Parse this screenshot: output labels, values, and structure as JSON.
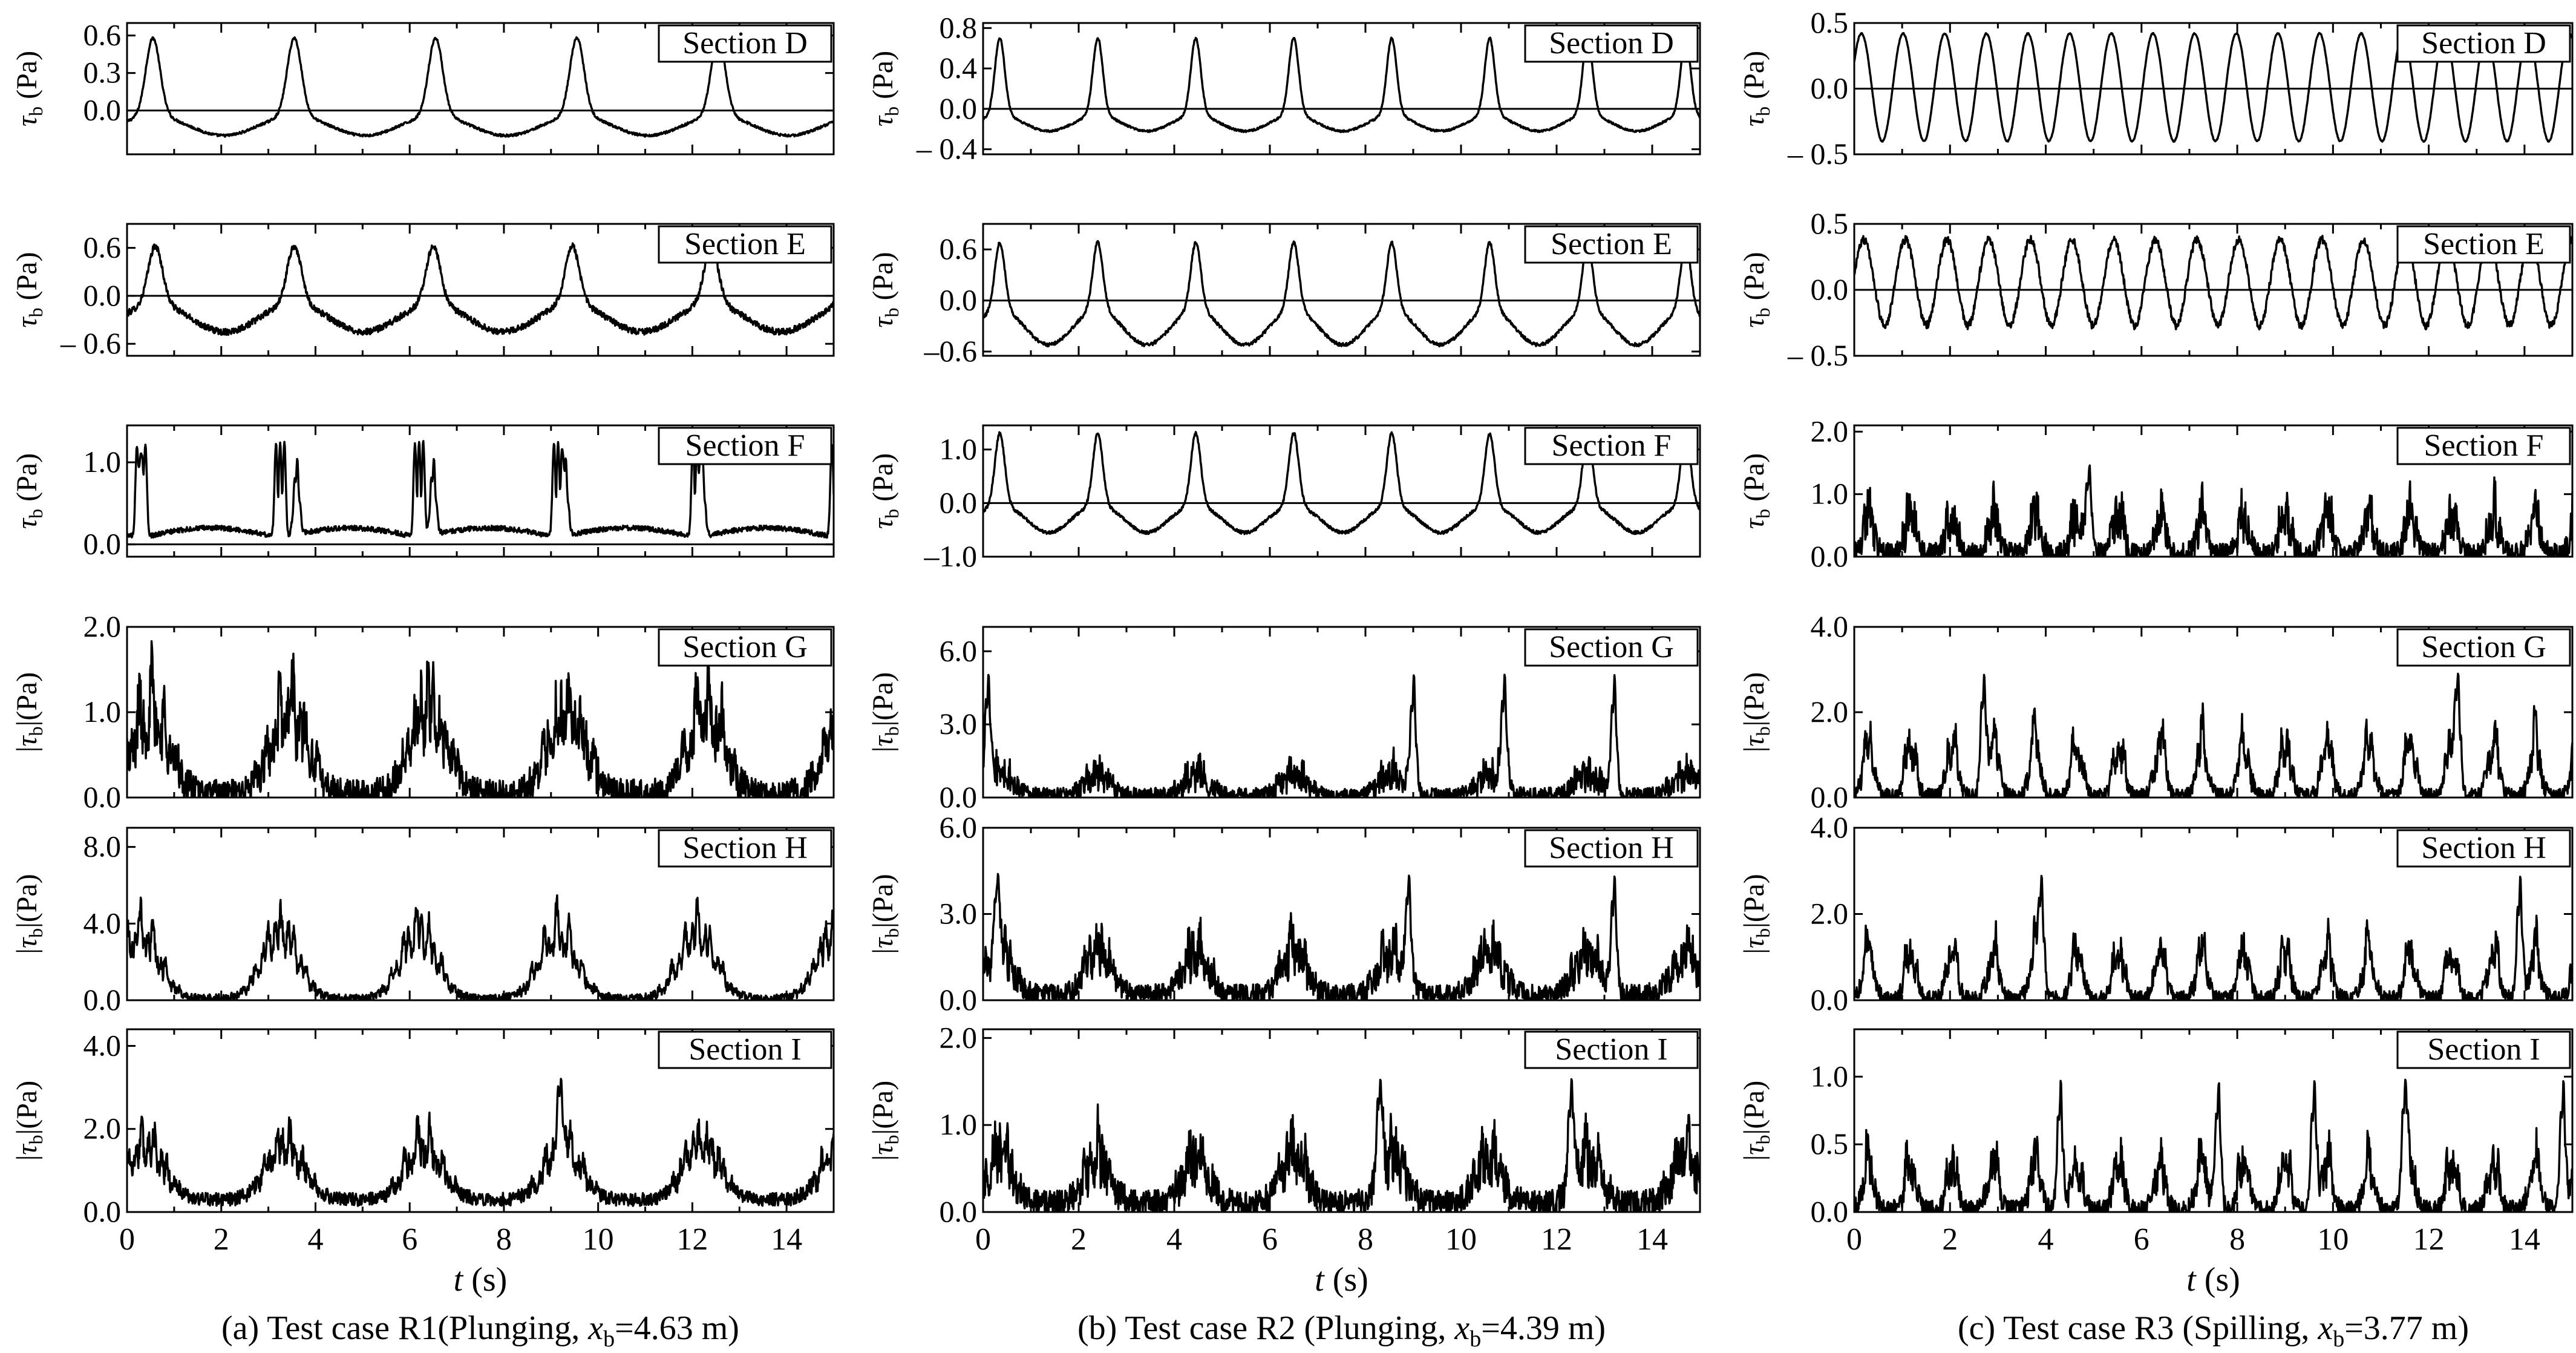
{
  "figure": {
    "columns": [
      {
        "caption": "(a) Test case R1(Plunging, ",
        "caption_var": "x",
        "caption_sub": "b",
        "caption_tail": "=4.63 m)"
      },
      {
        "caption": "(b) Test case R2 (Plunging, ",
        "caption_var": "x",
        "caption_sub": "b",
        "caption_tail": "=4.39 m)"
      },
      {
        "caption": "(c) Test case R3 (Spilling, ",
        "caption_var": "x",
        "caption_sub": "b",
        "caption_tail": "=3.77 m)"
      }
    ],
    "x_axis": {
      "label_var": "t",
      "label_unit": "(s)",
      "ticks": [
        "0",
        "2",
        "4",
        "6",
        "8",
        "10",
        "12",
        "14"
      ]
    },
    "colors": {
      "line": "#000000",
      "frame": "#000000",
      "background": "#ffffff"
    }
  },
  "chart_data": [
    {
      "type": "line",
      "col": 0,
      "row": 0,
      "label": "Section D",
      "ylabel": "τb (Pa)",
      "abs": false,
      "ylim": [
        -0.35,
        0.7
      ],
      "yticks": [
        "0.6",
        "0.3",
        "0.0"
      ],
      "ytick_values": [
        0.6,
        0.3,
        0.0
      ],
      "zero_line": true,
      "xlim": [
        0,
        15
      ],
      "mean_period": 3.0,
      "peak": 0.58,
      "trough": -0.2,
      "trough_width": 0.9,
      "drift": 0.0,
      "spikes": [],
      "phase": 0.55,
      "shape": "wave",
      "noise": 0.01
    },
    {
      "type": "line",
      "col": 0,
      "row": 1,
      "label": "Section E",
      "ylabel": "τb (Pa)",
      "abs": false,
      "ylim": [
        -0.75,
        0.9
      ],
      "yticks": [
        "0.6",
        "0.0",
        "– 0.6"
      ],
      "ytick_values": [
        0.6,
        0.0,
        -0.6
      ],
      "zero_line": true,
      "xlim": [
        0,
        15
      ],
      "mean_period": 2.95,
      "peak": 0.62,
      "trough": -0.45,
      "trough_width": 0.9,
      "drift": 0.0,
      "spikes": [],
      "phase": 0.6,
      "shape": "wave",
      "noise": 0.04
    },
    {
      "type": "line",
      "col": 0,
      "row": 2,
      "label": "Section F",
      "ylabel": "τb (Pa)",
      "abs": false,
      "ylim": [
        -0.15,
        1.45
      ],
      "yticks": [
        "1.0",
        "0.0"
      ],
      "ytick_values": [
        1.0,
        0.0
      ],
      "zero_line": true,
      "xlim": [
        0,
        15
      ],
      "mean_period": 2.95,
      "peak": 1.15,
      "trough": 0.15,
      "trough_width": 0.3,
      "drift": 0.0,
      "spikes": [
        0.3,
        3.6,
        6.5,
        9.3,
        12.2
      ],
      "phase": 0.3,
      "shape": "double",
      "noise": 0.03
    },
    {
      "type": "line",
      "col": 0,
      "row": 3,
      "label": "Section G",
      "ylabel": "|τb|(Pa)",
      "abs": true,
      "ylim": [
        0,
        2.0
      ],
      "yticks": [
        "2.0",
        "1.0",
        "0.0"
      ],
      "ytick_values": [
        2.0,
        1.0,
        0.0
      ],
      "zero_line": false,
      "xlim": [
        0,
        15
      ],
      "mean_period": 2.95,
      "peak": 1.4,
      "trough": 0.05,
      "trough_width": 0.7,
      "drift": 0.0,
      "spikes": [],
      "phase": 0.5,
      "shape": "burst",
      "noise": 0.15
    },
    {
      "type": "line",
      "col": 0,
      "row": 4,
      "label": "Section H",
      "ylabel": "|τb|(Pa)",
      "abs": true,
      "ylim": [
        0,
        9.0
      ],
      "yticks": [
        "8.0",
        "4.0",
        "0.0"
      ],
      "ytick_values": [
        8.0,
        4.0,
        0.0
      ],
      "zero_line": false,
      "xlim": [
        0,
        15
      ],
      "mean_period": 2.95,
      "peak": 5.0,
      "trough": 0.1,
      "trough_width": 0.2,
      "drift": 0.0,
      "spikes": [],
      "phase": 0.3,
      "shape": "burst",
      "noise": 0.2
    },
    {
      "type": "line",
      "col": 0,
      "row": 5,
      "label": "Section I",
      "ylabel": "|τb|(Pa)",
      "abs": true,
      "ylim": [
        0,
        4.4
      ],
      "yticks": [
        "4.0",
        "2.0",
        "0.0"
      ],
      "ytick_values": [
        4.0,
        2.0,
        0.0
      ],
      "zero_line": false,
      "xlim": [
        0,
        15
      ],
      "mean_period": 2.95,
      "peak": 1.9,
      "trough": 0.3,
      "trough_width": 0.5,
      "drift": 0.0,
      "spikes": [
        9.2
      ],
      "phase": 0.4,
      "shape": "burst",
      "noise": 0.12
    },
    {
      "type": "line",
      "col": 1,
      "row": 0,
      "label": "Section D",
      "ylabel": "τb (Pa)",
      "abs": false,
      "ylim": [
        -0.45,
        0.85
      ],
      "yticks": [
        "0.8",
        "0.4",
        "0.0",
        "– 0.4"
      ],
      "ytick_values": [
        0.8,
        0.4,
        0.0,
        -0.4
      ],
      "zero_line": true,
      "xlim": [
        0,
        15
      ],
      "mean_period": 2.05,
      "peak": 0.7,
      "trough": -0.22,
      "trough_width": 0.7,
      "drift": 0.0,
      "spikes": [],
      "phase": 0.35,
      "shape": "wave",
      "noise": 0.01
    },
    {
      "type": "line",
      "col": 1,
      "row": 1,
      "label": "Section E",
      "ylabel": "τb (Pa)",
      "abs": false,
      "ylim": [
        -0.65,
        0.9
      ],
      "yticks": [
        "0.6",
        "0.0",
        "–0.6"
      ],
      "ytick_values": [
        0.6,
        0.0,
        -0.6
      ],
      "zero_line": true,
      "xlim": [
        0,
        15
      ],
      "mean_period": 2.05,
      "peak": 0.68,
      "trough": -0.52,
      "trough_width": 0.6,
      "drift": 0.0,
      "spikes": [],
      "phase": 0.35,
      "shape": "wave",
      "noise": 0.02
    },
    {
      "type": "line",
      "col": 1,
      "row": 2,
      "label": "Section F",
      "ylabel": "τb (Pa)",
      "abs": false,
      "ylim": [
        -1.0,
        1.45
      ],
      "yticks": [
        "1.0",
        "0.0",
        "–1.0"
      ],
      "ytick_values": [
        1.0,
        0.0,
        -1.0
      ],
      "zero_line": true,
      "xlim": [
        0,
        15
      ],
      "mean_period": 2.05,
      "peak": 1.3,
      "trough": -0.55,
      "trough_width": 0.45,
      "drift": 0.0,
      "spikes": [],
      "phase": 0.35,
      "shape": "wave",
      "noise": 0.03
    },
    {
      "type": "line",
      "col": 1,
      "row": 3,
      "label": "Section G",
      "ylabel": "|τb|(Pa)",
      "abs": true,
      "ylim": [
        0,
        7.0
      ],
      "yticks": [
        "6.0",
        "3.0",
        "0.0"
      ],
      "ytick_values": [
        6.0,
        3.0,
        0.0
      ],
      "zero_line": false,
      "xlim": [
        0,
        15
      ],
      "mean_period": 2.05,
      "peak": 1.2,
      "trough": 0.1,
      "trough_width": 0.4,
      "drift": 0.0,
      "spikes": [
        0.1,
        9.0,
        10.9,
        13.2
      ],
      "phase": 0.35,
      "shape": "burst",
      "noise": 0.25
    },
    {
      "type": "line",
      "col": 1,
      "row": 4,
      "label": "Section H",
      "ylabel": "|τb|(Pa)",
      "abs": true,
      "ylim": [
        0,
        6.0
      ],
      "yticks": [
        "6.0",
        "3.0",
        "0.0"
      ],
      "ytick_values": [
        6.0,
        3.0,
        0.0
      ],
      "zero_line": false,
      "xlim": [
        0,
        15
      ],
      "mean_period": 2.05,
      "peak": 2.2,
      "trough": 0.2,
      "trough_width": 0.3,
      "drift": 0.0,
      "spikes": [
        0.3,
        8.9,
        13.2
      ],
      "phase": 0.35,
      "shape": "burst",
      "noise": 0.3
    },
    {
      "type": "line",
      "col": 1,
      "row": 5,
      "label": "Section I",
      "ylabel": "|τb|(Pa)",
      "abs": true,
      "ylim": [
        0,
        2.1
      ],
      "yticks": [
        "2.0",
        "1.0",
        "0.0"
      ],
      "ytick_values": [
        2.0,
        1.0,
        0.0
      ],
      "zero_line": false,
      "xlim": [
        0,
        15
      ],
      "mean_period": 2.05,
      "peak": 0.8,
      "trough": 0.1,
      "trough_width": 0.3,
      "drift": 0.0,
      "spikes": [
        8.3,
        12.3
      ],
      "phase": 0.35,
      "shape": "burst",
      "noise": 0.12
    },
    {
      "type": "line",
      "col": 2,
      "row": 0,
      "label": "Section D",
      "ylabel": "τb (Pa)",
      "abs": false,
      "ylim": [
        -0.5,
        0.5
      ],
      "yticks": [
        "0.5",
        "0.0",
        "– 0.5"
      ],
      "ytick_values": [
        0.5,
        0.0,
        -0.5
      ],
      "zero_line": true,
      "xlim": [
        0,
        15
      ],
      "mean_period": 0.87,
      "peak": 0.42,
      "trough": -0.4,
      "trough_width": 0.4,
      "drift": 0.0,
      "spikes": [],
      "phase": 0.15,
      "shape": "sine",
      "noise": 0.005
    },
    {
      "type": "line",
      "col": 2,
      "row": 1,
      "label": "Section E",
      "ylabel": "τb (Pa)",
      "abs": false,
      "ylim": [
        -0.5,
        0.5
      ],
      "yticks": [
        "0.5",
        "0.0",
        "– 0.5"
      ],
      "ytick_values": [
        0.5,
        0.0,
        -0.5
      ],
      "zero_line": true,
      "xlim": [
        0,
        15
      ],
      "mean_period": 0.87,
      "peak": 0.38,
      "trough": -0.27,
      "trough_width": 0.4,
      "drift": 0.0,
      "spikes": [],
      "phase": 0.2,
      "shape": "sine",
      "noise": 0.03
    },
    {
      "type": "line",
      "col": 2,
      "row": 2,
      "label": "Section F",
      "ylabel": "τb (Pa)",
      "abs": false,
      "ylim": [
        0,
        2.1
      ],
      "yticks": [
        "2.0",
        "1.0",
        "0.0"
      ],
      "ytick_values": [
        2.0,
        1.0,
        0.0
      ],
      "zero_line": false,
      "xlim": [
        0,
        15
      ],
      "mean_period": 0.87,
      "peak": 0.9,
      "trough": 0.05,
      "trough_width": 0.3,
      "drift": 0.0,
      "spikes": [
        4.9
      ],
      "phase": 0.3,
      "shape": "burst",
      "noise": 0.15
    },
    {
      "type": "line",
      "col": 2,
      "row": 3,
      "label": "Section G",
      "ylabel": "|τb|(Pa)",
      "abs": true,
      "ylim": [
        0,
        4.0
      ],
      "yticks": [
        "4.0",
        "2.0",
        "0.0"
      ],
      "ytick_values": [
        4.0,
        2.0,
        0.0
      ],
      "zero_line": false,
      "xlim": [
        0,
        15
      ],
      "mean_period": 0.87,
      "peak": 1.8,
      "trough": 0.05,
      "trough_width": 0.3,
      "drift": 0.0,
      "spikes": [
        2.7,
        12.6
      ],
      "phase": 0.3,
      "shape": "burst",
      "noise": 0.15
    },
    {
      "type": "line",
      "col": 2,
      "row": 4,
      "label": "Section H",
      "ylabel": "|τb|(Pa)",
      "abs": true,
      "ylim": [
        0,
        4.0
      ],
      "yticks": [
        "4.0",
        "2.0",
        "0.0"
      ],
      "ytick_values": [
        4.0,
        2.0,
        0.0
      ],
      "zero_line": false,
      "xlim": [
        0,
        15
      ],
      "mean_period": 0.87,
      "peak": 1.6,
      "trough": 0.05,
      "trough_width": 0.3,
      "drift": 0.0,
      "spikes": [
        3.9,
        13.9
      ],
      "phase": 0.3,
      "shape": "burst",
      "noise": 0.15
    },
    {
      "type": "line",
      "col": 2,
      "row": 5,
      "label": "Section I",
      "ylabel": "|τb|(Pa)",
      "abs": true,
      "ylim": [
        0,
        1.35
      ],
      "yticks": [
        "1.0",
        "0.5",
        "0.0"
      ],
      "ytick_values": [
        1.0,
        0.5,
        0.0
      ],
      "zero_line": false,
      "xlim": [
        0,
        15
      ],
      "mean_period": 0.87,
      "peak": 0.5,
      "trough": 0.02,
      "trough_width": 0.3,
      "drift": 0.0,
      "spikes": [
        4.3,
        7.6,
        9.6,
        11.5,
        14.8
      ],
      "phase": 0.3,
      "shape": "burst",
      "noise": 0.06
    }
  ]
}
